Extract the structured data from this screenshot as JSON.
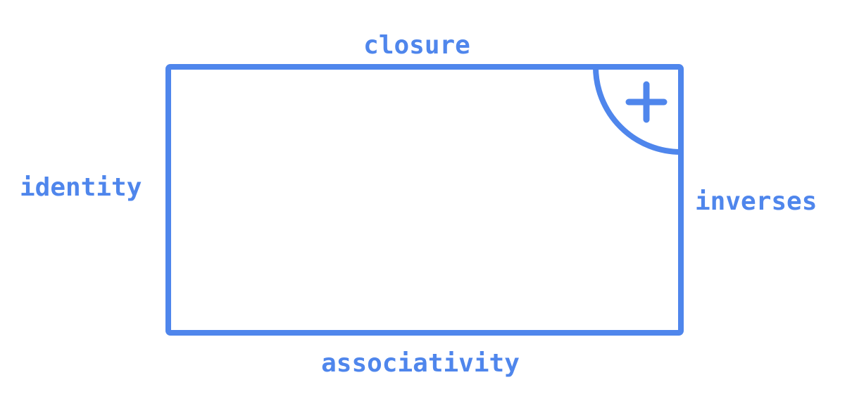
{
  "diagram": {
    "accent_color": "#4F86EC",
    "operation_symbol": "plus-icon",
    "labels": {
      "top": "closure",
      "left": "identity",
      "right": "inverses",
      "bottom": "associativity"
    }
  }
}
